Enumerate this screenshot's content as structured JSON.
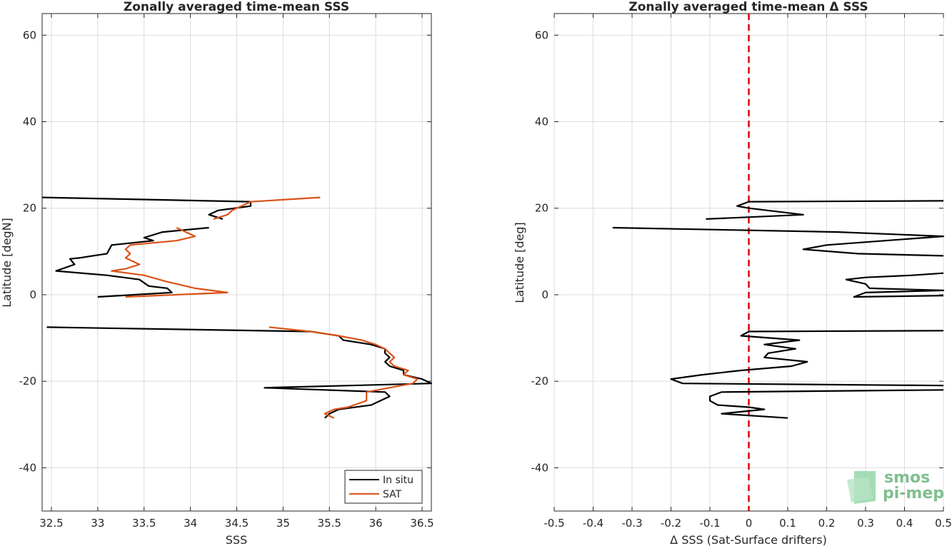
{
  "chart_data": [
    {
      "type": "line",
      "title": "Zonally averaged time-mean SSS",
      "xlabel": "SSS",
      "ylabel": "Latitude [degN]",
      "xlim": [
        32.4,
        36.6
      ],
      "ylim": [
        -50,
        65
      ],
      "xticks": [
        "32.5",
        "33",
        "33.5",
        "34",
        "34.5",
        "35",
        "35.5",
        "36",
        "36.5"
      ],
      "xtick_values": [
        32.5,
        33,
        33.5,
        34,
        34.5,
        35,
        35.5,
        36,
        36.5
      ],
      "yticks": [
        "-40",
        "-20",
        "0",
        "20",
        "40",
        "60"
      ],
      "ytick_values": [
        -40,
        -20,
        0,
        20,
        40,
        60
      ],
      "grid": true,
      "legend_position": "bottom-right",
      "series": [
        {
          "name": "In situ",
          "color": "#000000",
          "segments": [
            [
              [
                34.2,
                15.5
              ],
              [
                33.7,
                14.5
              ],
              [
                33.5,
                13.2
              ],
              [
                33.6,
                12.5
              ],
              [
                33.15,
                11.5
              ],
              [
                33.1,
                9.5
              ],
              [
                32.8,
                8.5
              ],
              [
                32.7,
                8.3
              ],
              [
                32.75,
                7.0
              ],
              [
                32.55,
                5.5
              ],
              [
                33.1,
                4.5
              ],
              [
                33.45,
                3.5
              ],
              [
                33.55,
                2.0
              ],
              [
                33.75,
                1.5
              ],
              [
                33.8,
                0.5
              ],
              [
                33.0,
                -0.5
              ]
            ],
            [
              [
                32.4,
                22.5
              ],
              [
                34.65,
                21.5
              ],
              [
                34.65,
                20.5
              ],
              [
                34.3,
                19.5
              ],
              [
                34.2,
                18.5
              ],
              [
                34.35,
                17.5
              ]
            ],
            [
              [
                32.45,
                -7.5
              ],
              [
                35.3,
                -8.5
              ],
              [
                35.6,
                -9.5
              ],
              [
                35.65,
                -10.5
              ],
              [
                35.95,
                -11.5
              ],
              [
                36.1,
                -12.5
              ],
              [
                36.1,
                -13.5
              ],
              [
                36.15,
                -14.5
              ],
              [
                36.1,
                -15.5
              ],
              [
                36.15,
                -16.5
              ],
              [
                36.3,
                -17.5
              ],
              [
                36.3,
                -18.5
              ],
              [
                36.5,
                -19.5
              ],
              [
                36.6,
                -20.5
              ],
              [
                34.8,
                -21.5
              ],
              [
                36.1,
                -22.5
              ],
              [
                36.15,
                -23.5
              ],
              [
                35.95,
                -25.5
              ],
              [
                35.6,
                -26.5
              ],
              [
                35.5,
                -27.5
              ],
              [
                35.45,
                -28.5
              ]
            ]
          ]
        },
        {
          "name": "SAT",
          "color": "#d95319",
          "segments": [
            [
              [
                33.85,
                15.5
              ],
              [
                34.05,
                13.5
              ],
              [
                33.85,
                12.5
              ],
              [
                33.35,
                11.5
              ],
              [
                33.3,
                10.5
              ],
              [
                33.35,
                9.5
              ],
              [
                33.3,
                8.5
              ],
              [
                33.45,
                7.0
              ],
              [
                33.3,
                6.0
              ],
              [
                33.15,
                5.5
              ],
              [
                33.5,
                4.5
              ],
              [
                33.75,
                3.0
              ],
              [
                34.05,
                1.5
              ],
              [
                34.4,
                0.5
              ],
              [
                33.3,
                -0.5
              ]
            ],
            [
              [
                35.4,
                22.5
              ],
              [
                34.65,
                21.5
              ],
              [
                34.55,
                20.5
              ],
              [
                34.45,
                19.5
              ],
              [
                34.4,
                18.5
              ],
              [
                34.25,
                17.5
              ]
            ],
            [
              [
                34.85,
                -7.5
              ],
              [
                35.3,
                -8.5
              ],
              [
                35.6,
                -9.5
              ],
              [
                35.85,
                -10.5
              ],
              [
                36.0,
                -11.5
              ],
              [
                36.1,
                -12.5
              ],
              [
                36.15,
                -13.5
              ],
              [
                36.2,
                -14.5
              ],
              [
                36.15,
                -15.5
              ],
              [
                36.2,
                -16.5
              ],
              [
                36.35,
                -17.5
              ],
              [
                36.3,
                -18.5
              ],
              [
                36.45,
                -19.5
              ],
              [
                36.4,
                -20.5
              ],
              [
                35.9,
                -22.5
              ],
              [
                35.9,
                -24.5
              ],
              [
                35.7,
                -26.0
              ],
              [
                35.55,
                -26.5
              ],
              [
                35.45,
                -27.5
              ],
              [
                35.55,
                -28.5
              ]
            ]
          ]
        }
      ]
    },
    {
      "type": "line",
      "title": "Zonally averaged time-mean Δ SSS",
      "xlabel": "Δ SSS (Sat-Surface drifters)",
      "ylabel": "Latitude [deg]",
      "xlim": [
        -0.5,
        0.5
      ],
      "ylim": [
        -50,
        65
      ],
      "xticks": [
        "-0.5",
        "-0.4",
        "-0.3",
        "-0.2",
        "-0.1",
        "0",
        "0.1",
        "0.2",
        "0.3",
        "0.4",
        "0.5"
      ],
      "xtick_values": [
        -0.5,
        -0.4,
        -0.3,
        -0.2,
        -0.1,
        0,
        0.1,
        0.2,
        0.3,
        0.4,
        0.5
      ],
      "yticks": [
        "-40",
        "-20",
        "0",
        "20",
        "40",
        "60"
      ],
      "ytick_values": [
        -40,
        -20,
        0,
        20,
        40,
        60
      ],
      "grid": true,
      "reference_line": {
        "x": 0,
        "color": "#e60000",
        "style": "dashed"
      },
      "series": [
        {
          "color": "#000000",
          "segments": [
            [
              [
                0.5,
                21.7
              ],
              [
                0.0,
                21.5
              ],
              [
                -0.03,
                20.5
              ],
              [
                0.0,
                20.0
              ],
              [
                0.14,
                18.5
              ],
              [
                -0.11,
                17.5
              ]
            ],
            [
              [
                -0.35,
                15.5
              ],
              [
                0.23,
                14.5
              ],
              [
                0.5,
                13.5
              ],
              [
                0.35,
                12.5
              ],
              [
                0.2,
                11.5
              ],
              [
                0.14,
                10.5
              ],
              [
                0.28,
                9.5
              ],
              [
                0.5,
                9.0
              ]
            ],
            [
              [
                0.5,
                5.0
              ],
              [
                0.42,
                4.5
              ],
              [
                0.3,
                4.0
              ],
              [
                0.25,
                3.5
              ],
              [
                0.3,
                2.5
              ],
              [
                0.31,
                1.5
              ],
              [
                0.5,
                1.0
              ],
              [
                0.3,
                0.5
              ],
              [
                0.27,
                -0.5
              ],
              [
                0.5,
                -0.2
              ]
            ],
            [
              [
                0.5,
                -8.3
              ],
              [
                0.0,
                -8.5
              ],
              [
                -0.02,
                -9.5
              ],
              [
                0.13,
                -10.5
              ],
              [
                0.04,
                -11.5
              ],
              [
                0.12,
                -12.5
              ],
              [
                0.05,
                -13.5
              ],
              [
                0.04,
                -14.5
              ],
              [
                0.15,
                -15.5
              ],
              [
                0.11,
                -16.5
              ],
              [
                -0.02,
                -17.5
              ],
              [
                -0.12,
                -18.5
              ],
              [
                -0.2,
                -19.5
              ],
              [
                -0.17,
                -20.5
              ],
              [
                0.5,
                -21.0
              ]
            ],
            [
              [
                0.5,
                -22.0
              ],
              [
                -0.07,
                -22.5
              ],
              [
                -0.1,
                -23.5
              ],
              [
                -0.1,
                -24.5
              ],
              [
                -0.08,
                -25.5
              ],
              [
                0.0,
                -26.0
              ],
              [
                0.04,
                -26.5
              ],
              [
                -0.07,
                -27.5
              ],
              [
                0.1,
                -28.5
              ]
            ]
          ]
        }
      ]
    }
  ],
  "legend": {
    "entries": [
      "In situ",
      "SAT"
    ]
  },
  "logo": {
    "line1": "smos",
    "line2": "pi-mep"
  }
}
